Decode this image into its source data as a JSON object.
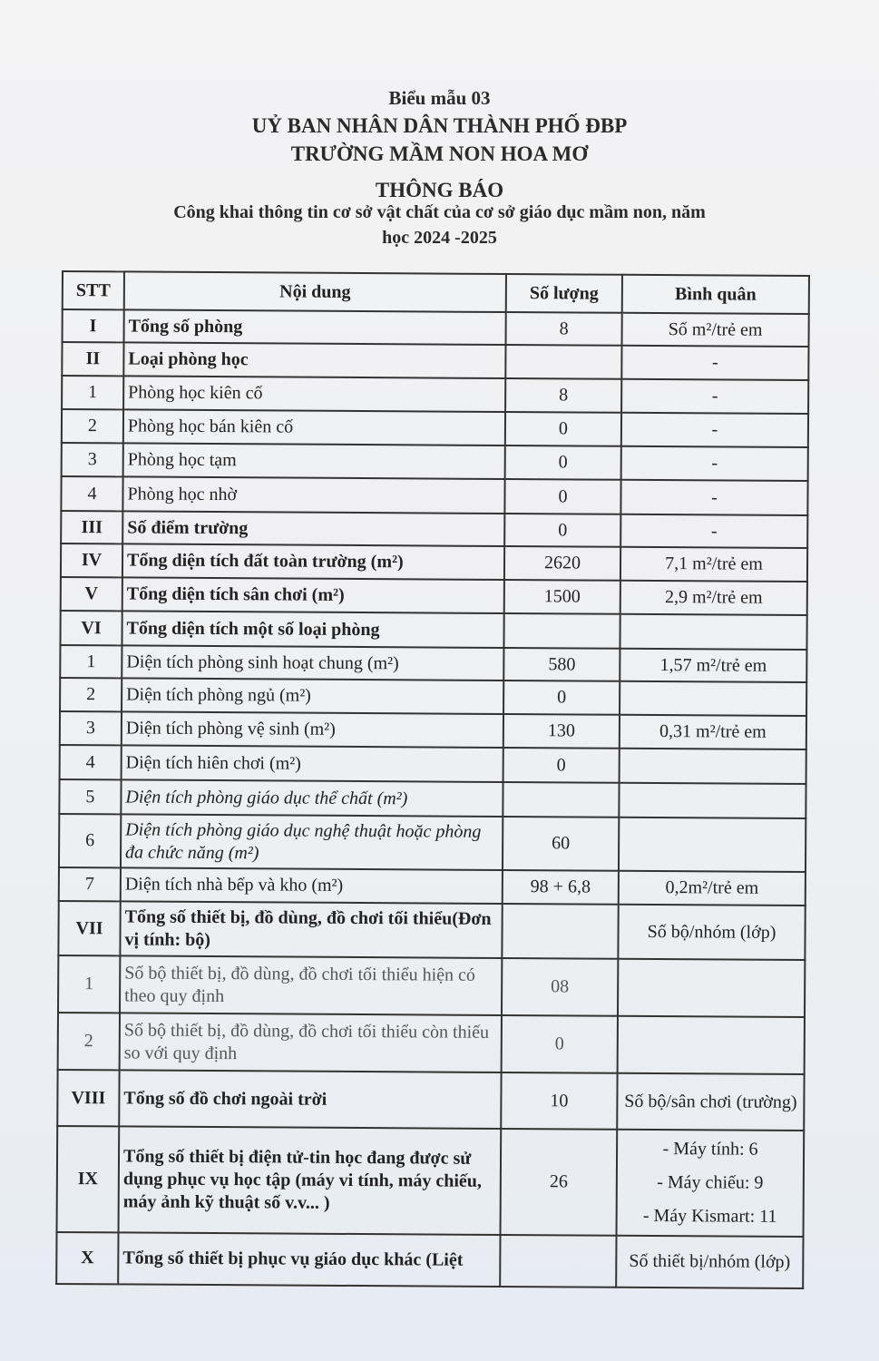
{
  "header": {
    "form": "Biểu mẫu 03",
    "authority": "UỶ BAN NHÂN DÂN THÀNH PHỐ ĐBP",
    "school": "TRƯỜNG MẦM NON HOA MƠ",
    "title": "THÔNG BÁO",
    "subtitle_1": "Công khai thông tin cơ sở vật chất của cơ sở giáo dục mầm non, năm",
    "subtitle_2": "học 2024 -2025"
  },
  "table": {
    "columns": [
      "STT",
      "Nội dung",
      "Số lượng",
      "Bình quân"
    ],
    "rows": [
      {
        "stt": "I",
        "content": "Tổng số phòng",
        "qty": "8",
        "avg": "Số m²/trẻ em",
        "style": "b",
        "h": 36
      },
      {
        "stt": "II",
        "content": "Loại phòng học",
        "qty": "",
        "avg": "-",
        "style": "b",
        "h": 37
      },
      {
        "stt": "1",
        "content": "Phòng học kiên cố",
        "qty": "8",
        "avg": "-",
        "style": "",
        "h": 37
      },
      {
        "stt": "2",
        "content": "Phòng học bán kiên cố",
        "qty": "0",
        "avg": "-",
        "style": "",
        "h": 37
      },
      {
        "stt": "3",
        "content": "Phòng học tạm",
        "qty": "0",
        "avg": "-",
        "style": "",
        "h": 37
      },
      {
        "stt": "4",
        "content": "Phòng học nhờ",
        "qty": "0",
        "avg": "-",
        "style": "",
        "h": 38
      },
      {
        "stt": "III",
        "content": "Số điểm trường",
        "qty": "0",
        "avg": "-",
        "style": "b",
        "h": 36
      },
      {
        "stt": "IV",
        "content": "Tổng diện tích đất toàn trường (m²)",
        "qty": "2620",
        "avg": "7,1 m²/trẻ em",
        "style": "b",
        "h": 37
      },
      {
        "stt": "V",
        "content": "Tổng diện tích sân chơi (m²)",
        "qty": "1500",
        "avg": "2,9 m²/trẻ em",
        "style": "b",
        "h": 37
      },
      {
        "stt": "VI",
        "content": "Tổng diện tích một số loại phòng",
        "qty": "",
        "avg": "",
        "style": "b",
        "h": 38
      },
      {
        "stt": "1",
        "content": "Diện tích phòng sinh hoạt chung (m²)",
        "qty": "580",
        "avg": "1,57 m²/trẻ em",
        "style": "",
        "h": 36
      },
      {
        "stt": "2",
        "content": "Diện tích phòng ngủ (m²)",
        "qty": "0",
        "avg": "",
        "style": "",
        "h": 37
      },
      {
        "stt": "3",
        "content": "Diện tích phòng vệ sinh (m²)",
        "qty": "130",
        "avg": "0,31 m²/trẻ em",
        "style": "",
        "h": 37
      },
      {
        "stt": "4",
        "content": "Diện tích hiên chơi (m²)",
        "qty": "0",
        "avg": "",
        "style": "",
        "h": 38
      },
      {
        "stt": "5",
        "content": "Diện tích phòng giáo dục thể chất (m²)",
        "qty": "",
        "avg": "",
        "style": "i",
        "h": 38
      },
      {
        "stt": "6",
        "content": "Diện tích phòng giáo dục nghệ thuật hoặc phòng đa chức năng (m²)",
        "qty": "60",
        "avg": "",
        "style": "i",
        "h": 59
      },
      {
        "stt": "7",
        "content": "Diện tích nhà bếp và kho (m²)",
        "qty": "98 + 6,8",
        "avg": "0,2m²/trẻ em",
        "style": "",
        "h": 37
      },
      {
        "stt": "VII",
        "content": "Tổng số thiết bị, đồ dùng, đồ chơi tối thiểu(Đơn vị tính: bộ)",
        "qty": "",
        "avg": "Số bộ/nhóm (lớp)",
        "style": "b",
        "h": 60
      },
      {
        "stt": "1",
        "content": "Số bộ thiết bị, đồ dùng, đồ chơi tối thiểu hiện có theo quy định",
        "qty": "08",
        "avg": "",
        "style": "f",
        "h": 63
      },
      {
        "stt": "2",
        "content": "Số bộ thiết bị, đồ dùng, đồ chơi tối thiểu còn thiếu so với quy định",
        "qty": "0",
        "avg": "",
        "style": "f",
        "h": 63
      },
      {
        "stt": "VIII",
        "content": "Tổng số đồ chơi ngoài trời",
        "qty": "10",
        "avg": "Số bộ/sân chơi (trường)",
        "style": "b",
        "h": 62
      },
      {
        "stt": "IX",
        "content": "Tổng số thiết bị điện tử-tin học đang được sử dụng phục vụ học tập (máy vi tính, máy chiếu, máy ảnh kỹ thuật số v.v... )",
        "qty": "26",
        "avg_list": [
          "- Máy tính: 6",
          "- Máy chiếu: 9",
          "- Máy Kismart: 11"
        ],
        "style": "b",
        "h": 113
      },
      {
        "stt": "X",
        "content": "Tổng số thiết bị phục vụ giáo dục khác (Liệt",
        "qty": "",
        "avg": "Số thiết bị/nhóm (lớp)",
        "style": "b",
        "h": 57
      }
    ]
  }
}
